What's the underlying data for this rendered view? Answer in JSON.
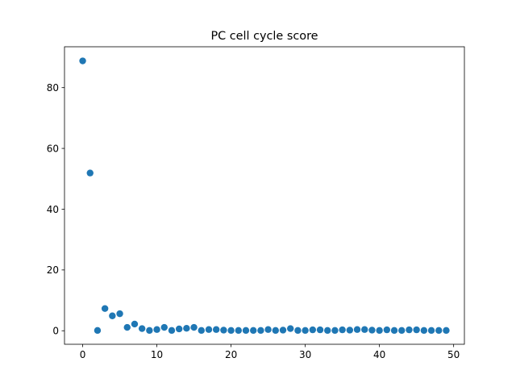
{
  "chart_data": {
    "type": "scatter",
    "title": "PC cell cycle score",
    "xlabel": "",
    "ylabel": "",
    "xlim": [
      -2.45,
      51.45
    ],
    "ylim": [
      -4.45,
      93.45
    ],
    "xticks": [
      0,
      10,
      20,
      30,
      40,
      50
    ],
    "yticks": [
      0,
      20,
      40,
      60,
      80
    ],
    "grid": false,
    "legend": "none",
    "marker_color": "#1f77b4",
    "x": [
      0,
      1,
      2,
      3,
      4,
      5,
      6,
      7,
      8,
      9,
      10,
      11,
      12,
      13,
      14,
      15,
      16,
      17,
      18,
      19,
      20,
      21,
      22,
      23,
      24,
      25,
      26,
      27,
      28,
      29,
      30,
      31,
      32,
      33,
      34,
      35,
      36,
      37,
      38,
      39,
      40,
      41,
      42,
      43,
      44,
      45,
      46,
      47,
      48,
      49
    ],
    "y": [
      88.8,
      51.9,
      0.1,
      7.3,
      4.9,
      5.6,
      1.1,
      2.2,
      0.7,
      0.1,
      0.4,
      1.1,
      0.1,
      0.6,
      0.8,
      1.1,
      0.1,
      0.4,
      0.4,
      0.2,
      0.1,
      0.1,
      0.1,
      0.1,
      0.1,
      0.4,
      0.1,
      0.2,
      0.7,
      0.1,
      0.1,
      0.3,
      0.3,
      0.1,
      0.1,
      0.3,
      0.2,
      0.4,
      0.4,
      0.2,
      0.1,
      0.3,
      0.1,
      0.1,
      0.3,
      0.3,
      0.1,
      0.1,
      0.1,
      0.1
    ]
  }
}
